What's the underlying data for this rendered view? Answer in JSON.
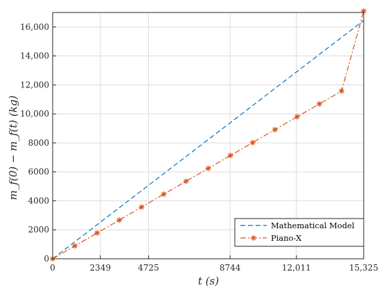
{
  "chart_data": {
    "type": "line",
    "xlabel": "t (s)",
    "ylabel": "m_f(0) − m_f(t) (kg)",
    "xlim": [
      0,
      15325
    ],
    "ylim": [
      0,
      17000
    ],
    "x_ticks": [
      0,
      2349,
      4725,
      8744,
      12011,
      15325
    ],
    "x_tick_labels": [
      "0",
      "2349",
      "4725",
      "8744",
      "12,011",
      "15,325"
    ],
    "y_ticks": [
      0,
      2000,
      4000,
      6000,
      8000,
      10000,
      12000,
      14000,
      16000
    ],
    "y_tick_labels": [
      "0",
      "2000",
      "4000",
      "6000",
      "8000",
      "10,000",
      "12,000",
      "14,000",
      "16,000"
    ],
    "grid": true,
    "legend_position": "bottom-right",
    "series": [
      {
        "name": "Mathematical Model",
        "color": "#0072BD",
        "style": "dashed",
        "x": [
          0,
          15325
        ],
        "y": [
          0,
          16450
        ]
      },
      {
        "name": "Piano-X",
        "color": "#D95319",
        "style": "dash-dot",
        "marker": "asterisk",
        "x": [
          0,
          1095,
          2190,
          3285,
          4380,
          5475,
          6570,
          7665,
          8760,
          9855,
          10950,
          12045,
          13140,
          14235,
          15325
        ],
        "y": [
          0,
          890,
          1780,
          2670,
          3570,
          4460,
          5350,
          6240,
          7130,
          8020,
          8910,
          9800,
          10690,
          11580,
          17100
        ]
      }
    ]
  }
}
